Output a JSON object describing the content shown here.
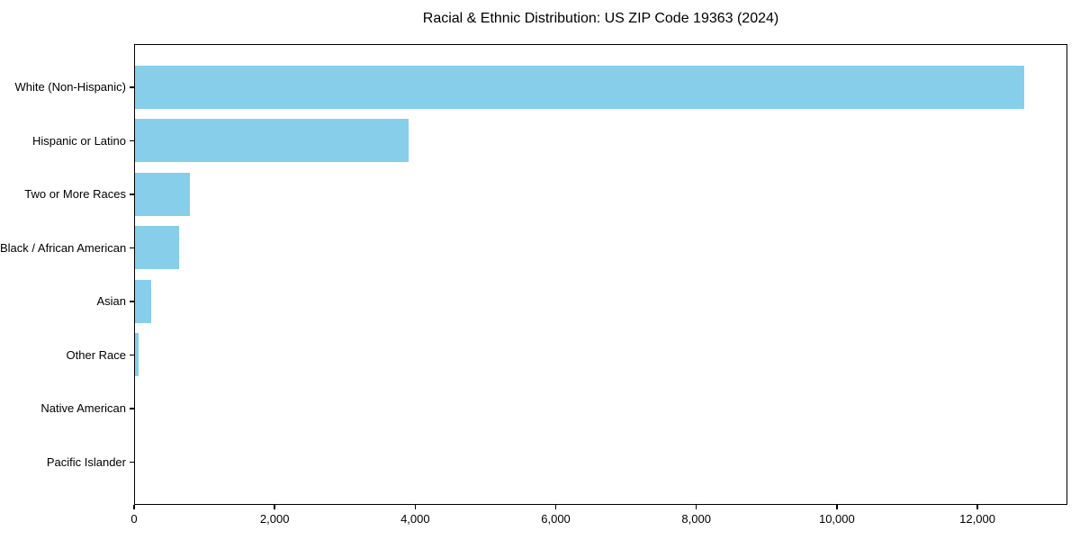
{
  "title": "Racial & Ethnic Distribution: US ZIP Code 19363 (2024)",
  "chart_data": {
    "type": "bar",
    "orientation": "horizontal",
    "title": "Racial & Ethnic Distribution: US ZIP Code 19363 (2024)",
    "categories": [
      "White (Non-Hispanic)",
      "Hispanic or Latino",
      "Two or More Races",
      "Black / African American",
      "Asian",
      "Other Race",
      "Native American",
      "Pacific Islander"
    ],
    "values": [
      12650,
      3890,
      780,
      630,
      225,
      45,
      0,
      0
    ],
    "xlabel": "",
    "ylabel": "",
    "xlim": [
      0,
      13280
    ],
    "xticks": [
      0,
      2000,
      4000,
      6000,
      8000,
      10000,
      12000
    ],
    "xtick_labels": [
      "0",
      "2,000",
      "4,000",
      "6,000",
      "8,000",
      "10,000",
      "12,000"
    ],
    "bar_color": "#87CEEB",
    "axis_color": "#000000",
    "background_color": "#FFFFFF",
    "grid": false,
    "legend": null,
    "largest_bar_label_order": "sorted descending top to bottom"
  }
}
